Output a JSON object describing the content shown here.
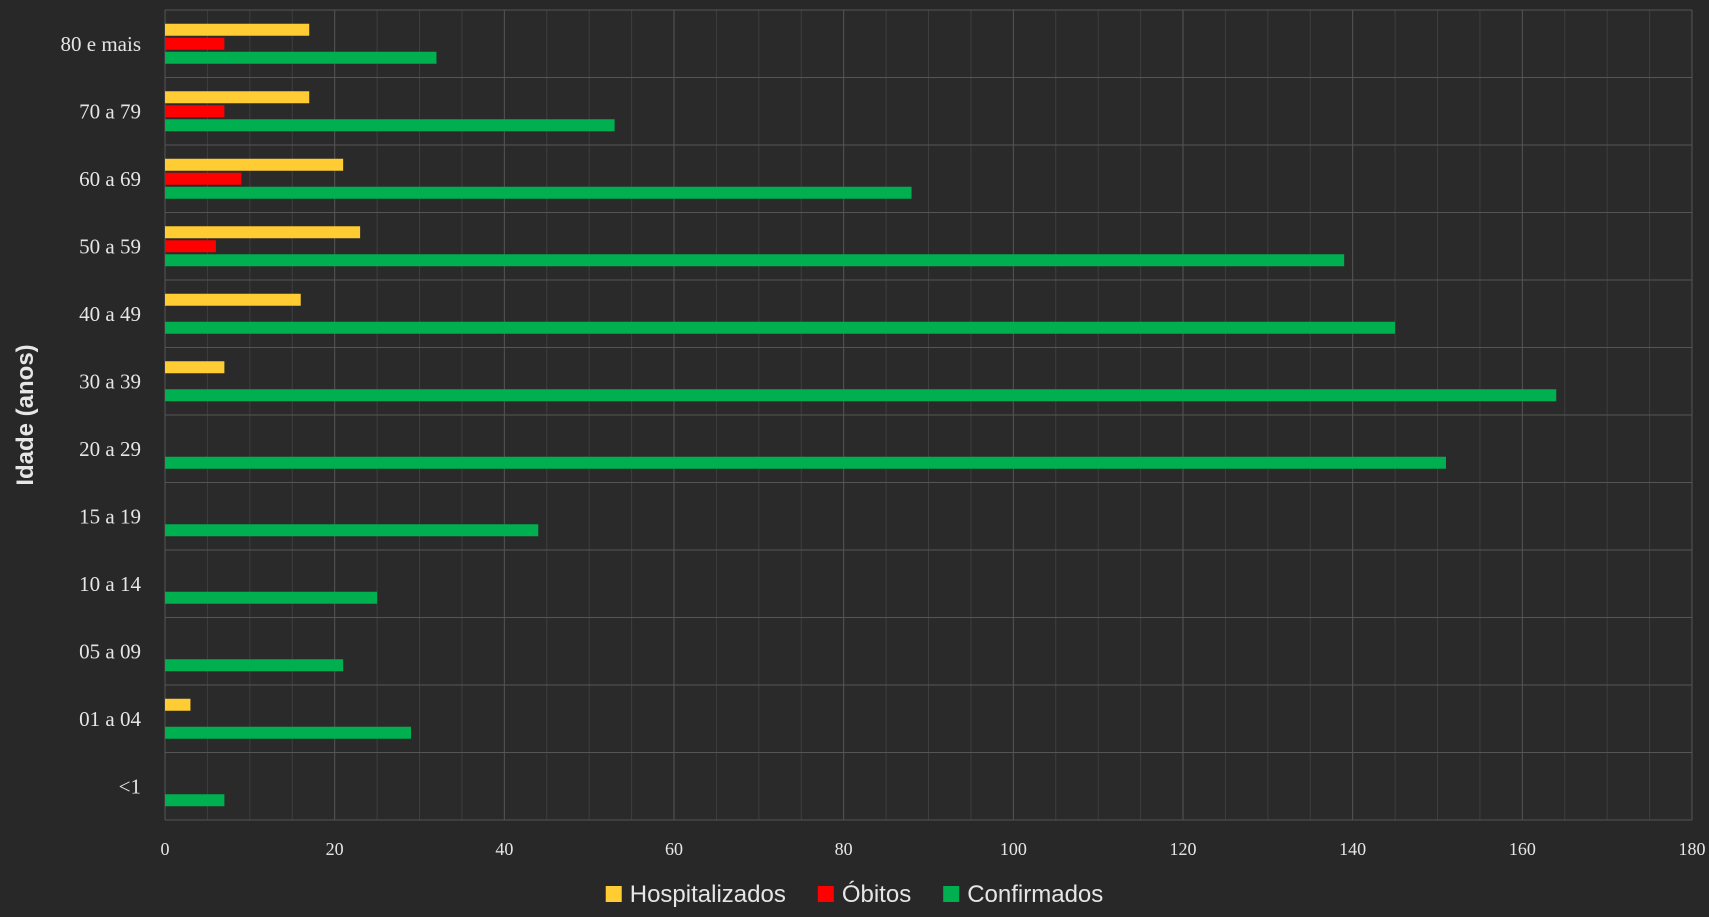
{
  "chart_data": {
    "type": "bar",
    "orientation": "horizontal",
    "title": "",
    "xlabel": "",
    "ylabel": "Idade (anos)",
    "xlim": [
      0,
      180
    ],
    "x_ticks": [
      0,
      20,
      40,
      60,
      80,
      100,
      120,
      140,
      160,
      180
    ],
    "grid": true,
    "legend_position": "bottom",
    "categories": [
      "80 e mais",
      "70 a 79",
      "60 a 69",
      "50 a 59",
      "40 a 49",
      "30 a 39",
      "20 a 29",
      "15 a 19",
      "10 a 14",
      "05 a 09",
      "01 a 04",
      "<1"
    ],
    "series": [
      {
        "name": "Hospitalizados",
        "color": "#ffcc33",
        "values": [
          17,
          17,
          21,
          23,
          16,
          7,
          0,
          0,
          0,
          0,
          3,
          0
        ]
      },
      {
        "name": "Óbitos",
        "color": "#ff0000",
        "values": [
          7,
          7,
          9,
          6,
          0,
          0,
          0,
          0,
          0,
          0,
          0,
          0
        ]
      },
      {
        "name": "Confirmados",
        "color": "#00b050",
        "values": [
          32,
          53,
          88,
          139,
          145,
          164,
          151,
          44,
          25,
          21,
          29,
          7
        ]
      }
    ]
  }
}
